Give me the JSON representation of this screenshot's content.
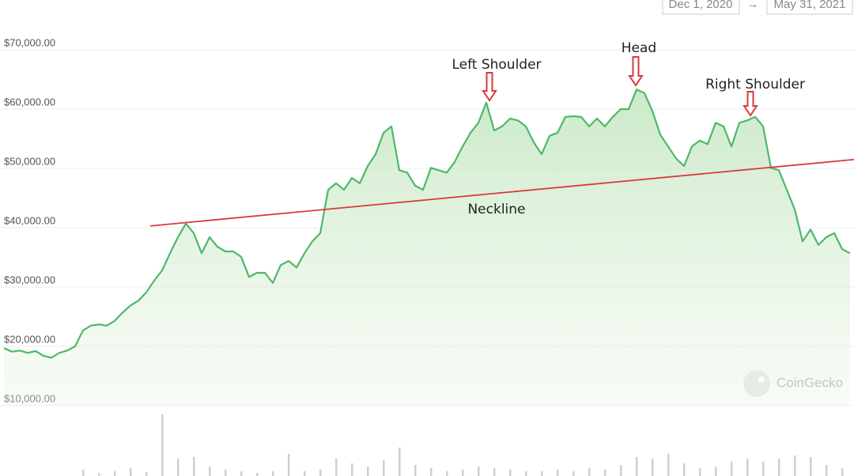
{
  "chart_data": {
    "type": "line",
    "date_range": [
      "Dec 1, 2020",
      "May 31, 2021"
    ],
    "date_separator": "→",
    "watermark": "CoinGecko",
    "color": "#4db86a",
    "values": [
      19700,
      19100,
      19300,
      18900,
      19200,
      18400,
      18100,
      18900,
      19300,
      20000,
      22700,
      23500,
      23700,
      23500,
      24300,
      25700,
      26900,
      27700,
      29100,
      31100,
      32800,
      35700,
      38400,
      40700,
      39100,
      35700,
      38400,
      36800,
      36000,
      36000,
      35100,
      31700,
      32400,
      32400,
      30700,
      33700,
      34400,
      33300,
      35700,
      37700,
      39100,
      46400,
      47500,
      46400,
      48400,
      47500,
      50400,
      52400,
      56000,
      57100,
      49700,
      49300,
      47100,
      46400,
      50100,
      49700,
      49300,
      51100,
      53700,
      56000,
      57700,
      61100,
      56400,
      57100,
      58400,
      58100,
      57100,
      54400,
      52400,
      55500,
      56000,
      58700,
      58800,
      58700,
      57100,
      58400,
      57100,
      58700,
      60000,
      60000,
      63300,
      62700,
      59700,
      55700,
      53700,
      51700,
      50400,
      53700,
      54700,
      54100,
      57700,
      57100,
      53700,
      57700,
      58100,
      58700,
      57100,
      50100,
      49700,
      46400,
      43100,
      37700,
      39700,
      37100,
      38400,
      39100,
      36400,
      35700
    ],
    "ylim": [
      10000,
      70000
    ],
    "yticks": [
      {
        "value": 10000,
        "label": "$10,000.00"
      },
      {
        "value": 20000,
        "label": "$20,000.00"
      },
      {
        "value": 30000,
        "label": "$30,000.00"
      },
      {
        "value": 40000,
        "label": "$40,000.00"
      },
      {
        "value": 50000,
        "label": "$50,000.00"
      },
      {
        "value": 60000,
        "label": "$60,000.00"
      },
      {
        "value": 70000,
        "label": "$70,000.00"
      }
    ],
    "grid": true,
    "annotations": [
      "Left Shoulder",
      "Head",
      "Right Shoulder"
    ],
    "neckline": {
      "label": "Neckline",
      "color": "#d9393b",
      "values": [
        40300,
        51500
      ]
    },
    "volume": {
      "color": "#cfcfcf",
      "values": [
        8,
        4,
        6,
        10,
        5,
        78,
        22,
        24,
        12,
        8,
        6,
        4,
        6,
        28,
        6,
        8,
        22,
        16,
        12,
        20,
        36,
        14,
        10,
        6,
        8,
        12,
        10,
        8,
        6,
        6,
        8,
        6,
        10,
        8,
        14,
        24,
        22,
        28,
        16,
        10,
        12,
        18,
        22,
        18,
        22,
        26,
        24,
        14,
        10
      ]
    }
  }
}
